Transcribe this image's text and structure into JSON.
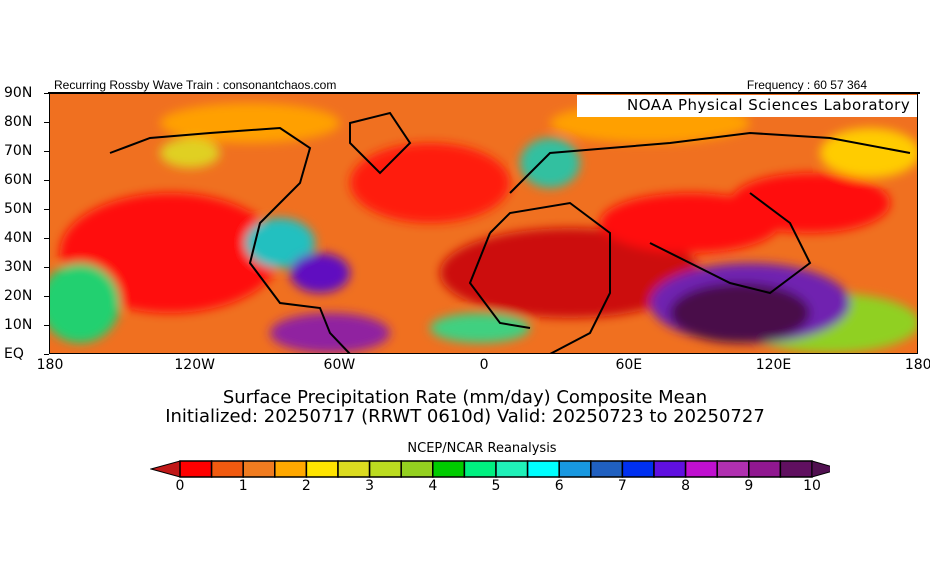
{
  "header": {
    "left": "Recurring Rossby Wave Train : consonantchaos.com",
    "right": "Frequency : 60 57 364",
    "lab": "NOAA Physical Sciences Laboratory"
  },
  "lat_labels": [
    "90N",
    "80N",
    "70N",
    "60N",
    "50N",
    "40N",
    "30N",
    "20N",
    "10N",
    "EQ"
  ],
  "lon_labels": [
    "180",
    "120W",
    "60W",
    "0",
    "60E",
    "120E",
    "180"
  ],
  "title_line1": "Surface Precipitation Rate (mm/day) Composite Mean",
  "title_line2": "Initialized: 20250717 (RRWT 0610d) Valid: 20250723 to 20250727",
  "colorbar": {
    "title": "NCEP/NCAR Reanalysis",
    "labels": [
      "0",
      "1",
      "2",
      "3",
      "4",
      "5",
      "6",
      "7",
      "8",
      "9",
      "10"
    ],
    "under_color": "#c01818",
    "over_color": "#501050",
    "colors": [
      "#ff0000",
      "#f05a10",
      "#f07c20",
      "#ffa800",
      "#ffe400",
      "#dcdc20",
      "#bcdc20",
      "#94d020",
      "#00cc00",
      "#00f080",
      "#20f0b8",
      "#00ffff",
      "#1898e0",
      "#2060c0",
      "#0030f0",
      "#6010e0",
      "#c010d0",
      "#b030b0",
      "#901890",
      "#601060"
    ]
  }
}
